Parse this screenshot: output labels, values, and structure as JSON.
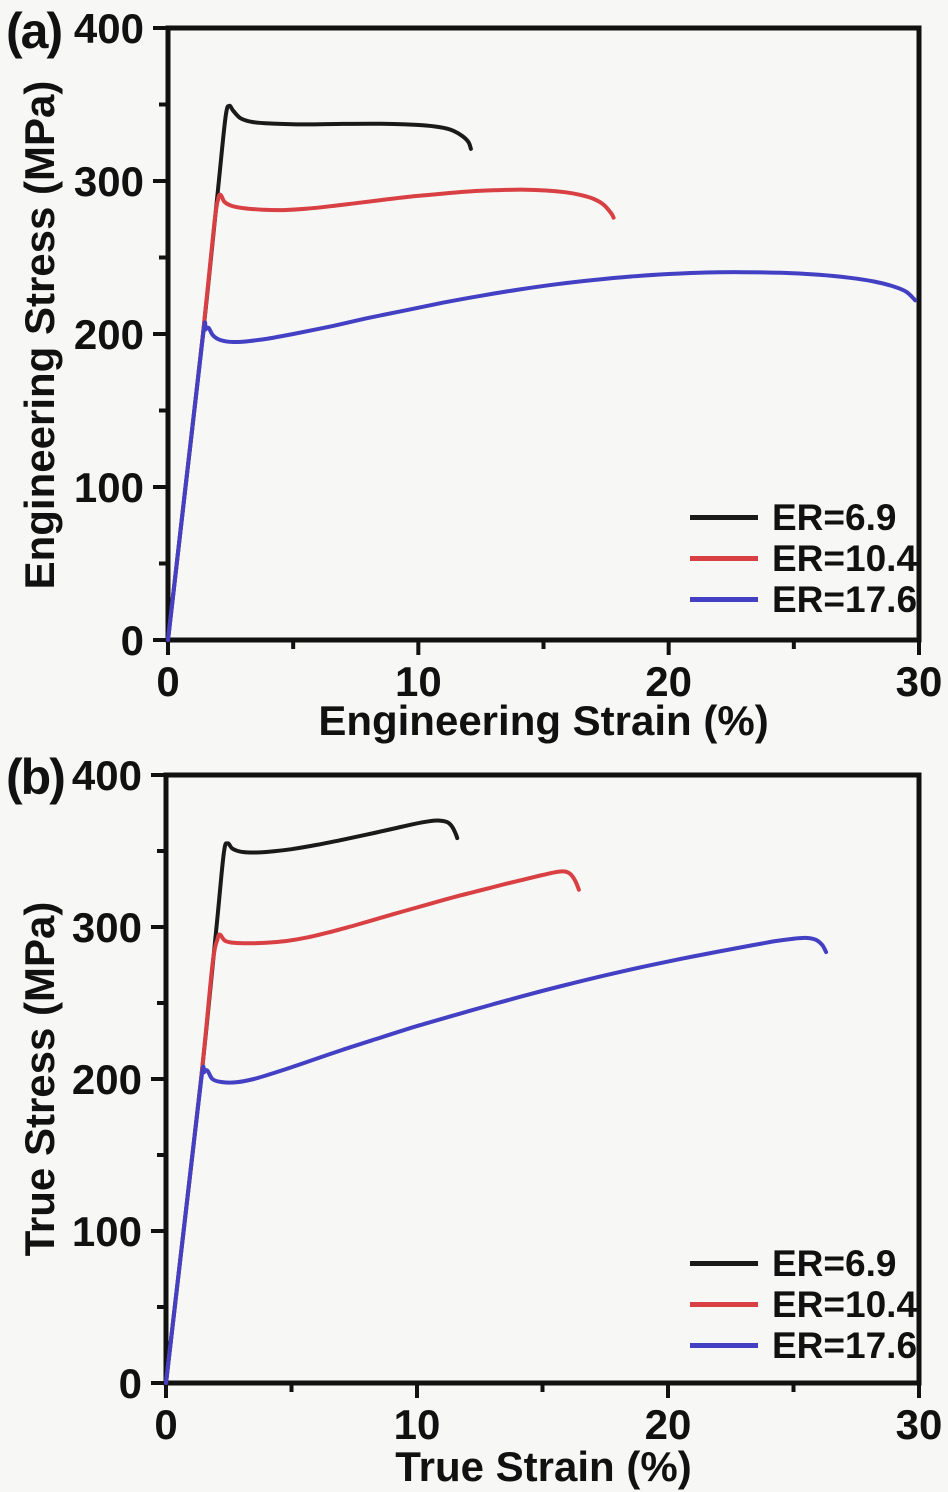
{
  "figure": {
    "background_color": "#f7f7f5",
    "axis_color": "#111111",
    "text_color": "#111111"
  },
  "chart_data": [
    {
      "type": "line",
      "panel_label": "(a)",
      "xlabel": "Engineering Strain (%)",
      "ylabel": "Engineering Stress (MPa)",
      "xlim": [
        0,
        30
      ],
      "ylim": [
        0,
        400
      ],
      "xticks": [
        0,
        10,
        20,
        30
      ],
      "xticks_minor": [
        5,
        15,
        25
      ],
      "yticks": [
        0,
        100,
        200,
        300,
        400
      ],
      "yticks_minor": [
        50,
        150,
        250,
        350
      ],
      "grid": false,
      "legend_position": "lower right",
      "series": [
        {
          "name": "ER=6.9",
          "color": "#1a1a1a",
          "points": [
            [
              0,
              0
            ],
            [
              0.7,
              100
            ],
            [
              1.4,
              200
            ],
            [
              2.0,
              295
            ],
            [
              2.3,
              342
            ],
            [
              2.45,
              349
            ],
            [
              2.6,
              346
            ],
            [
              2.9,
              341
            ],
            [
              3.4,
              338.5
            ],
            [
              4.2,
              337.5
            ],
            [
              5.5,
              337
            ],
            [
              7,
              337.3
            ],
            [
              8.5,
              337.4
            ],
            [
              9.5,
              337
            ],
            [
              10.3,
              336.3
            ],
            [
              11,
              334.8
            ],
            [
              11.4,
              332.8
            ],
            [
              11.75,
              329.5
            ],
            [
              12.0,
              325.5
            ],
            [
              12.1,
              321
            ]
          ]
        },
        {
          "name": "ER=10.4",
          "color": "#d84043",
          "points": [
            [
              0,
              0
            ],
            [
              0.7,
              100
            ],
            [
              1.4,
              200
            ],
            [
              1.85,
              272
            ],
            [
              2.0,
              288
            ],
            [
              2.1,
              291
            ],
            [
              2.25,
              286.5
            ],
            [
              2.5,
              284
            ],
            [
              3,
              282.3
            ],
            [
              3.8,
              281.2
            ],
            [
              4.6,
              281
            ],
            [
              5.5,
              281.8
            ],
            [
              6.5,
              283.5
            ],
            [
              7.5,
              285.5
            ],
            [
              8.5,
              287.5
            ],
            [
              9.5,
              289.5
            ],
            [
              10.5,
              291
            ],
            [
              11.5,
              292.5
            ],
            [
              12.5,
              293.6
            ],
            [
              13.5,
              294.2
            ],
            [
              14.3,
              294.3
            ],
            [
              15.1,
              293.8
            ],
            [
              15.9,
              292.6
            ],
            [
              16.5,
              290.8
            ],
            [
              17.0,
              288.3
            ],
            [
              17.4,
              284.5
            ],
            [
              17.7,
              279
            ],
            [
              17.8,
              276
            ]
          ]
        },
        {
          "name": "ER=17.6",
          "color": "#4340c4",
          "points": [
            [
              0,
              0
            ],
            [
              0.7,
              100
            ],
            [
              1.4,
              199
            ],
            [
              1.5,
              203
            ],
            [
              1.62,
              204
            ],
            [
              1.8,
              199
            ],
            [
              2.1,
              196
            ],
            [
              2.6,
              194.8
            ],
            [
              3.2,
              195.3
            ],
            [
              4,
              197
            ],
            [
              5,
              200
            ],
            [
              6.5,
              205
            ],
            [
              8,
              210.5
            ],
            [
              9.5,
              215.5
            ],
            [
              11,
              220.5
            ],
            [
              12.5,
              225
            ],
            [
              14,
              229
            ],
            [
              15.5,
              232.5
            ],
            [
              17,
              235.3
            ],
            [
              18.5,
              237.6
            ],
            [
              20,
              239.2
            ],
            [
              21.5,
              240.2
            ],
            [
              23,
              240.4
            ],
            [
              24.5,
              240
            ],
            [
              26,
              238.7
            ],
            [
              27.2,
              236.8
            ],
            [
              28.2,
              234.3
            ],
            [
              29,
              231
            ],
            [
              29.5,
              227.5
            ],
            [
              29.85,
              222
            ]
          ]
        }
      ]
    },
    {
      "type": "line",
      "panel_label": "(b)",
      "xlabel": "True Strain (%)",
      "ylabel": "True Stress (MPa)",
      "xlim": [
        0,
        30
      ],
      "ylim": [
        0,
        400
      ],
      "xticks": [
        0,
        10,
        20,
        30
      ],
      "xticks_minor": [
        5,
        15,
        25
      ],
      "yticks": [
        0,
        100,
        200,
        300,
        400
      ],
      "yticks_minor": [
        50,
        150,
        250,
        350
      ],
      "grid": false,
      "legend_position": "lower right",
      "series": [
        {
          "name": "ER=6.9",
          "color": "#1a1a1a",
          "points": [
            [
              0,
              0
            ],
            [
              0.7,
              100
            ],
            [
              1.4,
              200
            ],
            [
              2.0,
              298
            ],
            [
              2.3,
              348
            ],
            [
              2.45,
              355
            ],
            [
              2.65,
              351.5
            ],
            [
              3.0,
              349.5
            ],
            [
              3.6,
              349
            ],
            [
              4.3,
              349.8
            ],
            [
              5,
              351.2
            ],
            [
              6,
              354
            ],
            [
              7,
              357.3
            ],
            [
              8,
              360.8
            ],
            [
              9,
              364.5
            ],
            [
              9.8,
              367.5
            ],
            [
              10.5,
              369.6
            ],
            [
              10.9,
              370
            ],
            [
              11.2,
              369
            ],
            [
              11.4,
              366
            ],
            [
              11.55,
              361
            ],
            [
              11.6,
              358.5
            ]
          ]
        },
        {
          "name": "ER=10.4",
          "color": "#d84043",
          "points": [
            [
              0,
              0
            ],
            [
              0.7,
              100
            ],
            [
              1.4,
              200
            ],
            [
              1.85,
              275
            ],
            [
              2.05,
              292
            ],
            [
              2.15,
              295
            ],
            [
              2.35,
              291
            ],
            [
              2.7,
              289.6
            ],
            [
              3.3,
              289.3
            ],
            [
              4,
              289.6
            ],
            [
              4.8,
              290.8
            ],
            [
              5.6,
              293
            ],
            [
              6.5,
              296.5
            ],
            [
              7.5,
              301
            ],
            [
              8.5,
              305.8
            ],
            [
              9.5,
              310.5
            ],
            [
              10.5,
              315.2
            ],
            [
              11.5,
              319.8
            ],
            [
              12.5,
              324
            ],
            [
              13.5,
              328.2
            ],
            [
              14.3,
              331.4
            ],
            [
              15,
              334.2
            ],
            [
              15.5,
              336
            ],
            [
              15.85,
              336.6
            ],
            [
              16.1,
              335
            ],
            [
              16.3,
              330.5
            ],
            [
              16.45,
              324.5
            ]
          ]
        },
        {
          "name": "ER=17.6",
          "color": "#4340c4",
          "points": [
            [
              0,
              0
            ],
            [
              0.7,
              100
            ],
            [
              1.4,
              199
            ],
            [
              1.52,
              204.5
            ],
            [
              1.65,
              205.5
            ],
            [
              1.85,
              200
            ],
            [
              2.2,
              198
            ],
            [
              2.8,
              197.8
            ],
            [
              3.5,
              200
            ],
            [
              4.5,
              205
            ],
            [
              5.5,
              210.5
            ],
            [
              7,
              219
            ],
            [
              8.5,
              227
            ],
            [
              10,
              234.8
            ],
            [
              11.5,
              242
            ],
            [
              13,
              249
            ],
            [
              14.5,
              255.8
            ],
            [
              16,
              262.2
            ],
            [
              17.5,
              268.2
            ],
            [
              19,
              273.8
            ],
            [
              20.5,
              279
            ],
            [
              22,
              283.8
            ],
            [
              23.2,
              287.5
            ],
            [
              24.2,
              290.5
            ],
            [
              25,
              292.3
            ],
            [
              25.5,
              292.8
            ],
            [
              25.9,
              291.5
            ],
            [
              26.15,
              288
            ],
            [
              26.3,
              283.5
            ]
          ]
        }
      ]
    }
  ]
}
